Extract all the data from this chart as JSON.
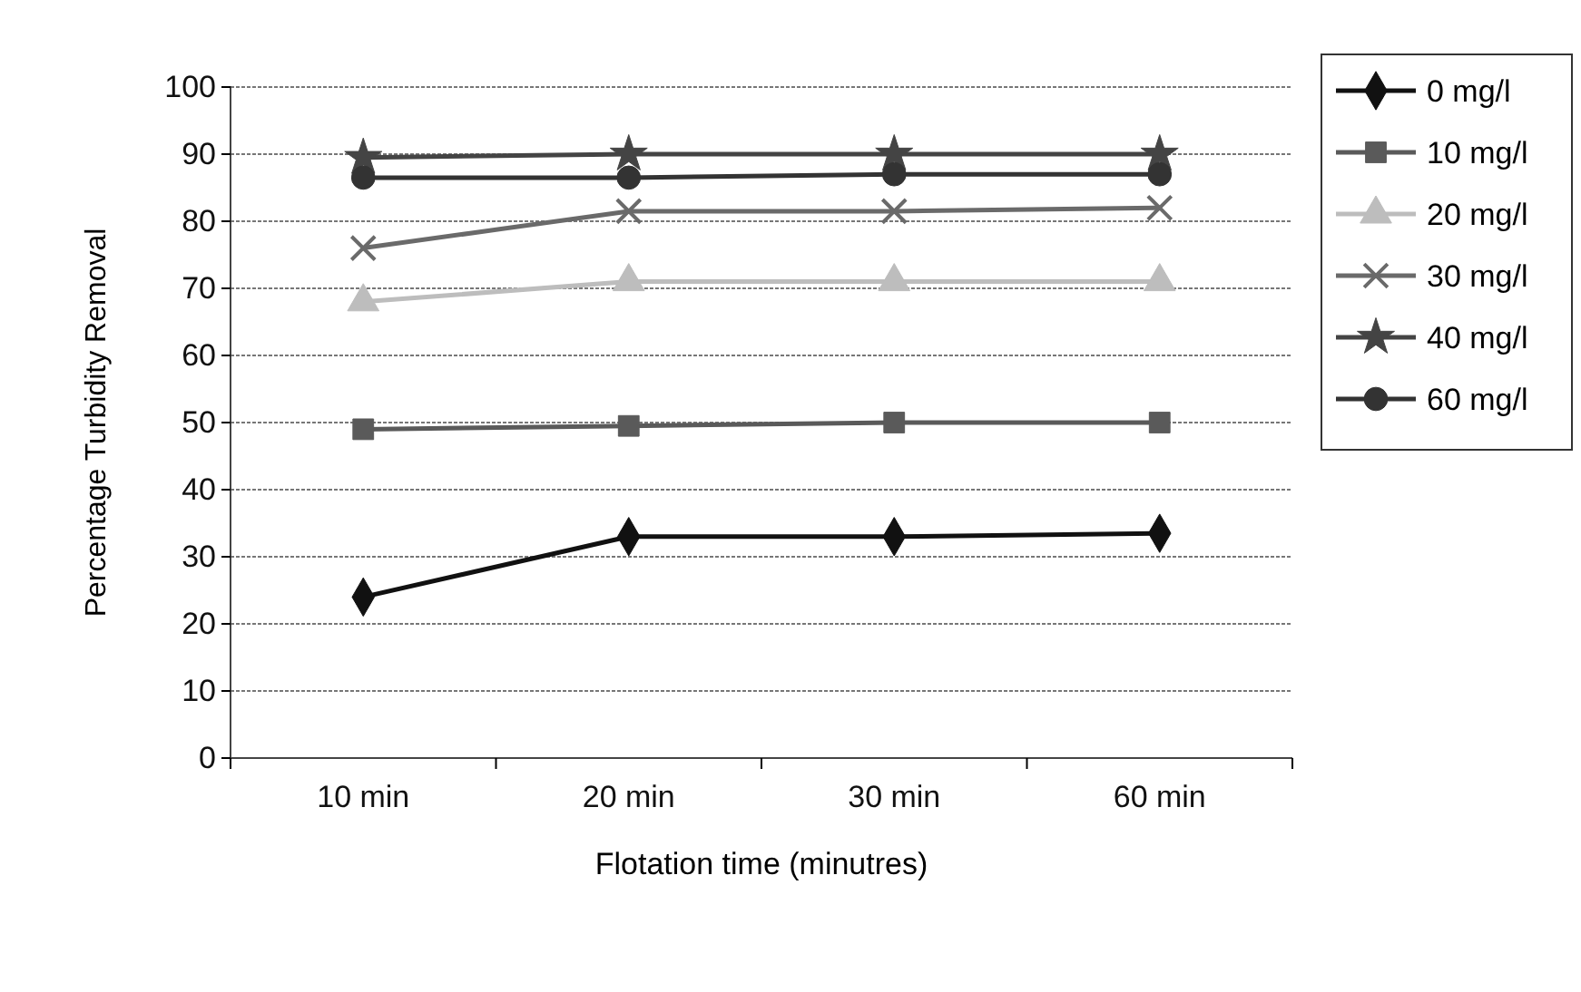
{
  "chart_data": {
    "type": "line",
    "xlabel": "Flotation time (minutres)",
    "ylabel": "Percentage Turbidity Removal",
    "categories": [
      "10 min",
      "20 min",
      "30 min",
      "60 min"
    ],
    "ylim": [
      0,
      100
    ],
    "yticks": [
      0,
      10,
      20,
      30,
      40,
      50,
      60,
      70,
      80,
      90,
      100
    ],
    "grid": "y",
    "legend": "right",
    "series": [
      {
        "name": "0 mg/l",
        "color": "#111111",
        "marker": "diamond",
        "values": [
          24,
          33,
          33,
          33.5
        ]
      },
      {
        "name": "10 mg/l",
        "color": "#5a5a5a",
        "marker": "square",
        "values": [
          49,
          49.5,
          50,
          50
        ]
      },
      {
        "name": "20 mg/l",
        "color": "#bdbdbd",
        "marker": "triangle",
        "values": [
          68,
          71,
          71,
          71
        ]
      },
      {
        "name": "30 mg/l",
        "color": "#6a6a6a",
        "marker": "cross",
        "values": [
          76,
          81.5,
          81.5,
          82
        ]
      },
      {
        "name": "40 mg/l",
        "color": "#444444",
        "marker": "star",
        "values": [
          89.5,
          90,
          90,
          90
        ]
      },
      {
        "name": "60 mg/l",
        "color": "#333333",
        "marker": "circle",
        "values": [
          86.5,
          86.5,
          87,
          87
        ]
      }
    ]
  }
}
